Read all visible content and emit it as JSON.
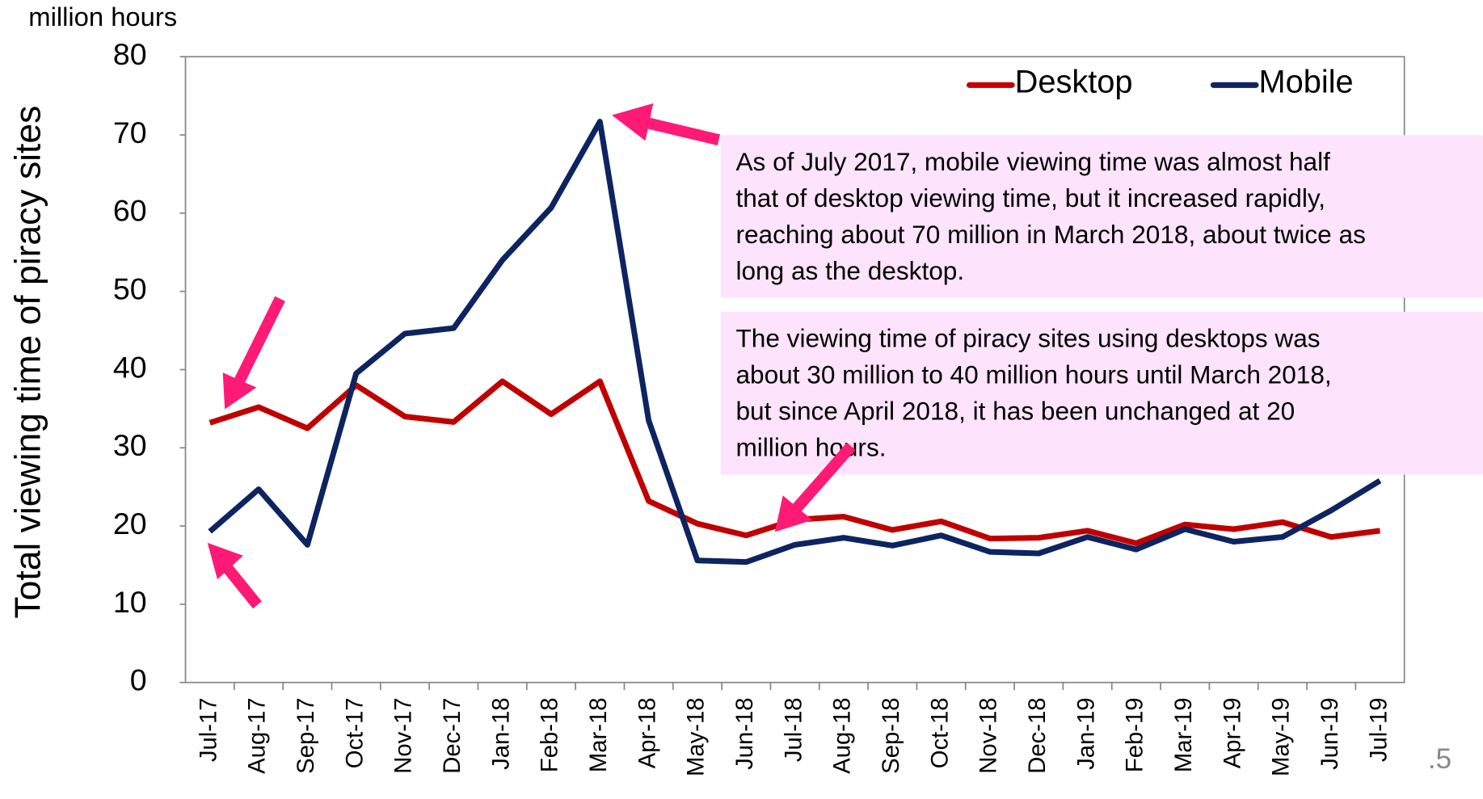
{
  "chart_data": {
    "type": "line",
    "y_axis_label": "Total viewing time of piracy sites",
    "y_unit": "million hours",
    "categories": [
      "Jul-17",
      "Aug-17",
      "Sep-17",
      "Oct-17",
      "Nov-17",
      "Dec-17",
      "Jan-18",
      "Feb-18",
      "Mar-18",
      "Apr-18",
      "May-18",
      "Jun-18",
      "Jul-18",
      "Aug-18",
      "Sep-18",
      "Oct-18",
      "Nov-18",
      "Dec-18",
      "Jan-19",
      "Feb-19",
      "Mar-19",
      "Apr-19",
      "May-19",
      "Jun-19",
      "Jul-19"
    ],
    "series": [
      {
        "name": "Desktop",
        "color": "#c00000",
        "values": [
          33.2,
          35.2,
          32.5,
          38,
          34,
          33.3,
          38.5,
          34.3,
          38.5,
          23.2,
          20.3,
          18.8,
          20.8,
          21.2,
          19.5,
          20.6,
          18.4,
          18.5,
          19.4,
          17.8,
          20.2,
          19.6,
          20.5,
          18.6,
          19.4
        ]
      },
      {
        "name": "Mobile",
        "color": "#0d2461",
        "values": [
          19.3,
          24.7,
          17.6,
          39.5,
          44.6,
          45.3,
          54,
          60.7,
          71.7,
          33.5,
          15.6,
          15.4,
          17.6,
          18.5,
          17.5,
          18.8,
          16.7,
          16.5,
          18.6,
          17,
          19.6,
          18,
          18.6,
          22,
          25.8
        ]
      }
    ],
    "ylim": [
      0,
      80
    ],
    "yticks": [
      0,
      10,
      20,
      30,
      40,
      50,
      60,
      70,
      80
    ],
    "grid": false,
    "legend": "top-right",
    "annotations": [
      [
        "As of July 2017, mobile viewing time was almost half",
        "that of desktop viewing time, but it increased rapidly,",
        "reaching about 70 million in March 2018, about twice as",
        "long as the desktop."
      ],
      [
        "The viewing time of piracy sites using desktops was",
        "about 30 million to 40 million hours until March 2018,",
        "but since April 2018, it has been unchanged at 20",
        "million hours."
      ]
    ],
    "page_number": ".5"
  }
}
